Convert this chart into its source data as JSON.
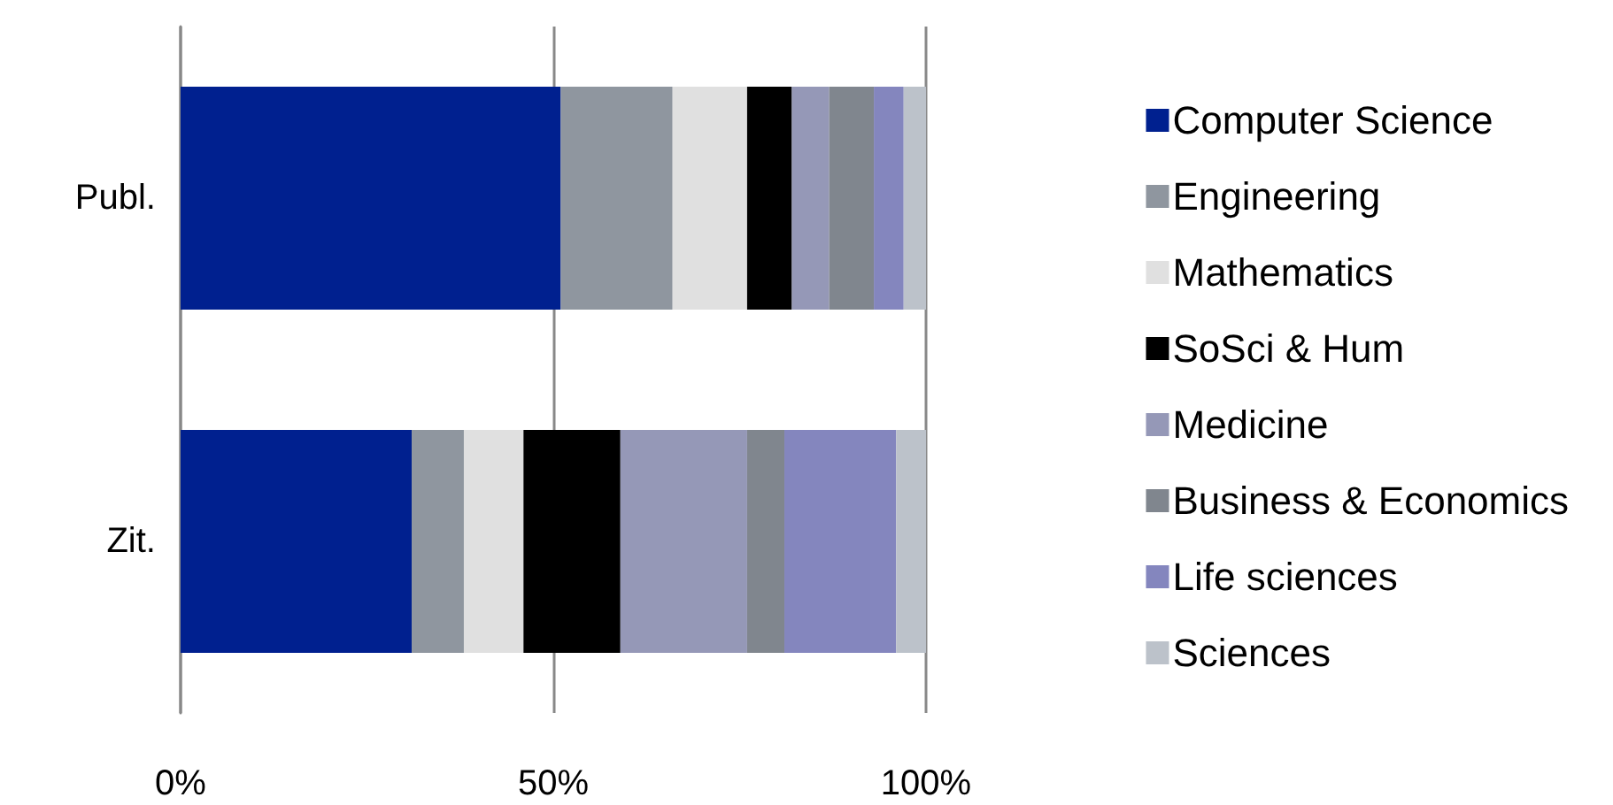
{
  "chart_data": {
    "type": "bar",
    "orientation": "horizontal",
    "stacked": true,
    "categories": [
      "Publ.",
      "Zit."
    ],
    "series": [
      {
        "name": "Computer Science",
        "color": "#00208f",
        "values": [
          51,
          31
        ]
      },
      {
        "name": "Engineering",
        "color": "#8f969f",
        "values": [
          15,
          7
        ]
      },
      {
        "name": "Mathematics",
        "color": "#e0e0e0",
        "values": [
          10,
          8
        ]
      },
      {
        "name": "SoSci & Hum",
        "color": "#000000",
        "values": [
          6,
          13
        ]
      },
      {
        "name": "Medicine",
        "color": "#9598b7",
        "values": [
          5,
          17
        ]
      },
      {
        "name": "Business & Economics",
        "color": "#80868e",
        "values": [
          6,
          5
        ]
      },
      {
        "name": "Life sciences",
        "color": "#8486be",
        "values": [
          4,
          15
        ]
      },
      {
        "name": "Sciences",
        "color": "#bcc2ca",
        "values": [
          3,
          4
        ]
      }
    ],
    "xlim": [
      0,
      100
    ],
    "xticks": [
      {
        "value": 0,
        "label": "0%"
      },
      {
        "value": 50,
        "label": "50%"
      },
      {
        "value": 100,
        "label": "100%"
      }
    ],
    "grid": "x",
    "legend": "right"
  }
}
